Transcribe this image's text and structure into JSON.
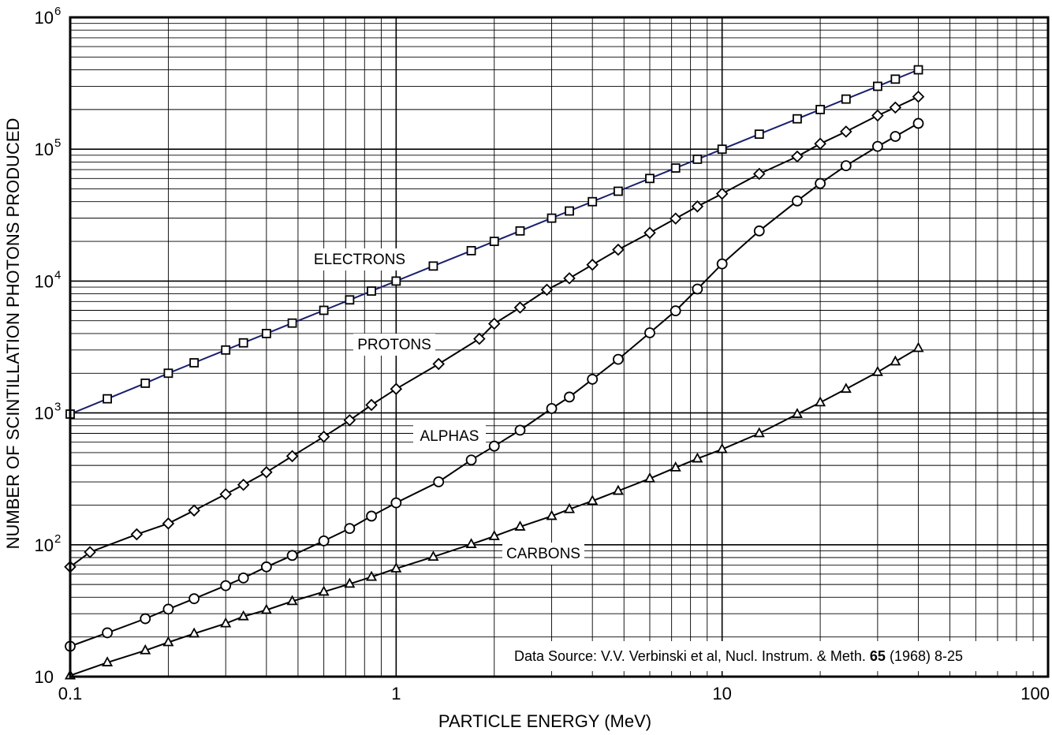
{
  "chart_data": {
    "type": "line",
    "title": "",
    "xlabel": "PARTICLE ENERGY  (MeV)",
    "ylabel": "NUMBER OF SCINTILLATION PHOTONS PRODUCED",
    "x_scale": "log",
    "y_scale": "log",
    "xlim": [
      0.1,
      100
    ],
    "ylim": [
      10,
      1000000
    ],
    "grid": true,
    "x_ticks": [
      {
        "value": 0.1,
        "label": "0.1"
      },
      {
        "value": 1,
        "label": "1"
      },
      {
        "value": 10,
        "label": "10"
      },
      {
        "value": 100,
        "label": "100"
      }
    ],
    "y_ticks": [
      {
        "value": 10,
        "base": "10",
        "exp": ""
      },
      {
        "value": 100,
        "base": "10",
        "exp": "2"
      },
      {
        "value": 1000,
        "base": "10",
        "exp": "3"
      },
      {
        "value": 10000,
        "base": "10",
        "exp": "4"
      },
      {
        "value": 100000,
        "base": "10",
        "exp": "5"
      },
      {
        "value": 1000000,
        "base": "10",
        "exp": "6"
      }
    ],
    "series": [
      {
        "name": "ELECTRONS",
        "marker": "square",
        "color": "#1a1f6e",
        "x": [
          0.1,
          0.13,
          0.17,
          0.2,
          0.24,
          0.3,
          0.34,
          0.4,
          0.48,
          0.6,
          0.72,
          0.84,
          1.0,
          1.3,
          1.7,
          2.0,
          2.4,
          3.0,
          3.4,
          4.0,
          4.8,
          6.0,
          7.2,
          8.4,
          10,
          13,
          17,
          20,
          24,
          30,
          34,
          40
        ],
        "y": [
          980,
          1280,
          1680,
          2000,
          2400,
          3000,
          3400,
          4000,
          4800,
          6000,
          7200,
          8400,
          10000,
          13000,
          17000,
          20000,
          24000,
          30000,
          34000,
          40000,
          48000,
          60000,
          72000,
          84000,
          100000,
          130000,
          170000,
          200000,
          240000,
          300000,
          340000,
          400000
        ]
      },
      {
        "name": "PROTONS",
        "marker": "diamond",
        "color": "#000000",
        "x": [
          0.1,
          0.115,
          0.16,
          0.2,
          0.24,
          0.3,
          0.34,
          0.4,
          0.48,
          0.6,
          0.72,
          0.84,
          1.0,
          1.35,
          1.8,
          2.0,
          2.4,
          2.9,
          3.4,
          4.0,
          4.8,
          6.0,
          7.2,
          8.4,
          10,
          13,
          17,
          20,
          24,
          30,
          34,
          40
        ],
        "y": [
          68,
          88,
          120,
          145,
          182,
          242,
          285,
          355,
          470,
          660,
          880,
          1150,
          1520,
          2350,
          3650,
          4750,
          6300,
          8600,
          10500,
          13300,
          17300,
          23200,
          29800,
          36800,
          46000,
          65000,
          88000,
          110000,
          136000,
          180000,
          207000,
          250000
        ]
      },
      {
        "name": "ALPHAS",
        "marker": "circle",
        "color": "#000000",
        "x": [
          0.1,
          0.13,
          0.17,
          0.2,
          0.24,
          0.3,
          0.34,
          0.4,
          0.48,
          0.6,
          0.72,
          0.84,
          1.0,
          1.35,
          1.7,
          2.0,
          2.4,
          3.0,
          3.4,
          4.0,
          4.8,
          6.0,
          7.2,
          8.4,
          10,
          13,
          17,
          20,
          24,
          30,
          34,
          40
        ],
        "y": [
          17,
          21.5,
          27.5,
          32.5,
          39,
          49,
          56,
          68,
          83,
          107,
          133,
          165,
          208,
          300,
          440,
          560,
          740,
          1080,
          1320,
          1800,
          2550,
          4050,
          5950,
          8700,
          13500,
          24000,
          40500,
          55000,
          75000,
          105000,
          125000,
          157000
        ]
      },
      {
        "name": "CARBONS",
        "marker": "triangle",
        "color": "#000000",
        "x": [
          0.1,
          0.13,
          0.17,
          0.2,
          0.24,
          0.3,
          0.34,
          0.4,
          0.48,
          0.6,
          0.72,
          0.84,
          1.0,
          1.3,
          1.7,
          2.0,
          2.4,
          3.0,
          3.4,
          4.0,
          4.8,
          6.0,
          7.2,
          8.4,
          10,
          13,
          17,
          20,
          24,
          30,
          34,
          40
        ],
        "y": [
          10.2,
          12.8,
          15.8,
          18.2,
          21.2,
          25.3,
          28.6,
          32,
          37.3,
          44,
          50.5,
          57,
          66,
          81,
          101,
          116,
          137,
          165,
          186,
          215,
          256,
          318,
          385,
          450,
          530,
          700,
          980,
          1200,
          1520,
          2040,
          2450,
          3100
        ]
      }
    ],
    "annotations": [
      {
        "text": "ELECTRONS",
        "series": "ELECTRONS"
      },
      {
        "text": "PROTONS",
        "series": "PROTONS"
      },
      {
        "text": "ALPHAS",
        "series": "ALPHAS"
      },
      {
        "text": "CARBONS",
        "series": "CARBONS"
      }
    ],
    "source_note": {
      "prefix": "Data Source:  V.V. Verbinski et al, Nucl. Instrum. & Meth.",
      "bold": "65",
      "suffix": "(1968) 8-25"
    }
  }
}
